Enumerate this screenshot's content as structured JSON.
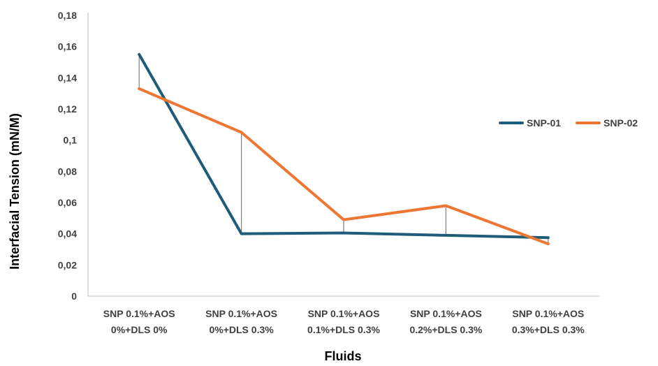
{
  "chart_data": {
    "type": "line",
    "title": "",
    "xlabel": "Fluids",
    "ylabel": "Interfacial Tension (mN/M)",
    "categories": [
      [
        "SNP 0.1%+AOS",
        "0%+DLS 0%"
      ],
      [
        "SNP 0.1%+AOS",
        "0%+DLS 0.3%"
      ],
      [
        "SNP 0.1%+AOS",
        "0.1%+DLS 0.3%"
      ],
      [
        "SNP 0.1%+AOS",
        "0.2%+DLS 0.3%"
      ],
      [
        "SNP 0.1%+AOS",
        "0.3%+DLS 0.3%"
      ]
    ],
    "series": [
      {
        "name": "SNP-01",
        "color": "#1f5c7a",
        "values": [
          0.155,
          0.04,
          0.0405,
          0.039,
          0.0375
        ]
      },
      {
        "name": "SNP-02",
        "color": "#ed7632",
        "values": [
          0.133,
          0.105,
          0.049,
          0.058,
          0.0335
        ]
      }
    ],
    "yticks": [
      "0",
      "0,02",
      "0,04",
      "0,06",
      "0,08",
      "0,1",
      "0,12",
      "0,14",
      "0,16",
      "0,18"
    ],
    "ylim": [
      0,
      0.18
    ],
    "high_low_lines": true,
    "grid": false,
    "legend_position": "right"
  }
}
